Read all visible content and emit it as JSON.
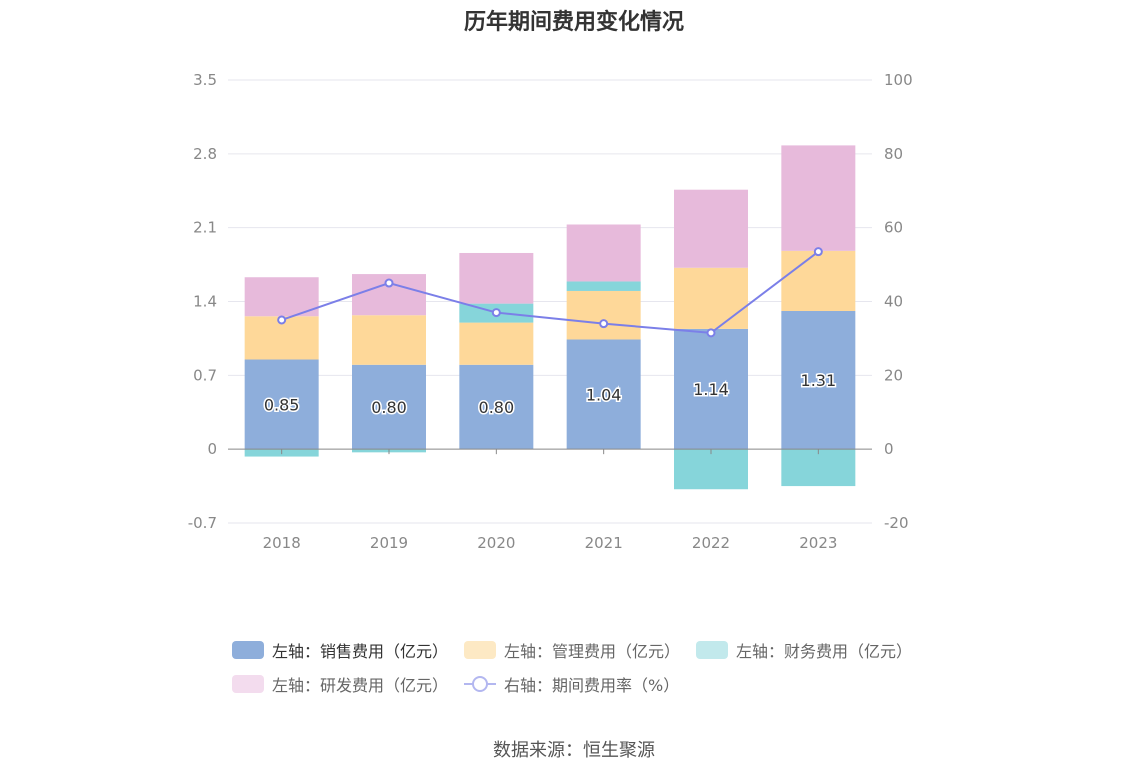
{
  "chart_data": {
    "type": "bar",
    "title": "历年期间费用变化情况",
    "categories": [
      "2018",
      "2019",
      "2020",
      "2021",
      "2022",
      "2023"
    ],
    "left_axis": {
      "min": -0.7,
      "max": 3.5,
      "ticks": [
        "3.5",
        "2.8",
        "2.1",
        "1.4",
        "0.7",
        "0",
        "-0.7"
      ]
    },
    "right_axis": {
      "min": -20,
      "max": 100,
      "ticks": [
        "100",
        "80",
        "60",
        "40",
        "20",
        "0",
        "-20"
      ]
    },
    "stacked": true,
    "series": [
      {
        "name": "左轴：销售费用（亿元）",
        "axis": "left",
        "type": "bar",
        "color": "#8eaedb",
        "values": [
          0.85,
          0.8,
          0.8,
          1.04,
          1.14,
          1.31
        ],
        "labels": [
          "0.85",
          "0.80",
          "0.80",
          "1.04",
          "1.14",
          "1.31"
        ]
      },
      {
        "name": "左轴：管理费用（亿元）",
        "axis": "left",
        "type": "bar",
        "color": "#fed899",
        "values": [
          0.41,
          0.47,
          0.4,
          0.46,
          0.58,
          0.57
        ]
      },
      {
        "name": "左轴：财务费用（亿元）",
        "axis": "left",
        "type": "bar",
        "color": "#86d5da",
        "values": [
          -0.07,
          -0.03,
          0.18,
          0.09,
          -0.38,
          -0.35
        ]
      },
      {
        "name": "左轴：研发费用（亿元）",
        "axis": "left",
        "type": "bar",
        "color": "#e7badb",
        "values": [
          0.37,
          0.39,
          0.48,
          0.54,
          0.74,
          1.0
        ]
      },
      {
        "name": "右轴：期间费用率（%）",
        "axis": "right",
        "type": "line",
        "color": "#7b7fe8",
        "values": [
          35.0,
          45.0,
          37.0,
          34.0,
          31.5,
          53.5
        ]
      }
    ],
    "grid": true,
    "legend_position": "bottom"
  },
  "source_text": "数据来源：恒生聚源"
}
